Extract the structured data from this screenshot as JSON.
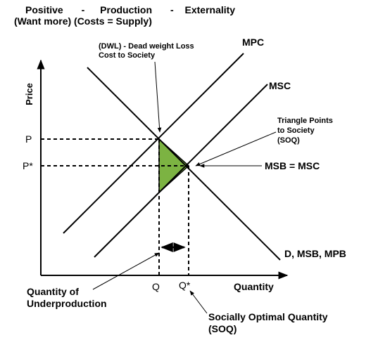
{
  "title": {
    "line1_parts": [
      "Positive",
      "-",
      "Production",
      "-",
      "Externality"
    ],
    "line2": "(Want more) (Costs = Supply)"
  },
  "axes": {
    "y_label": "Price",
    "x_label": "Quantity"
  },
  "price_ticks": {
    "p": "P",
    "p_star": "P*"
  },
  "quantity_ticks": {
    "q": "Q",
    "q_star": "Q*"
  },
  "curve_labels": {
    "mpc": "MPC",
    "msc": "MSC",
    "demand": "D, MSB, MPB"
  },
  "annotations": {
    "dwl_line1": "(DWL) - Dead weight Loss",
    "dwl_line2": "Cost to Society",
    "triangle_line1": "Triangle Points",
    "triangle_line2": "to Society",
    "triangle_line3": "(SOQ)",
    "msb_msc": "MSB = MSC",
    "underprod_line1": "Quantity of",
    "underprod_line2": "Underproduction",
    "soq_line1": "Socially Optimal Quantity",
    "soq_line2": "(SOQ)"
  },
  "colors": {
    "dwl_fill": "#7CB342",
    "line": "#000000"
  }
}
